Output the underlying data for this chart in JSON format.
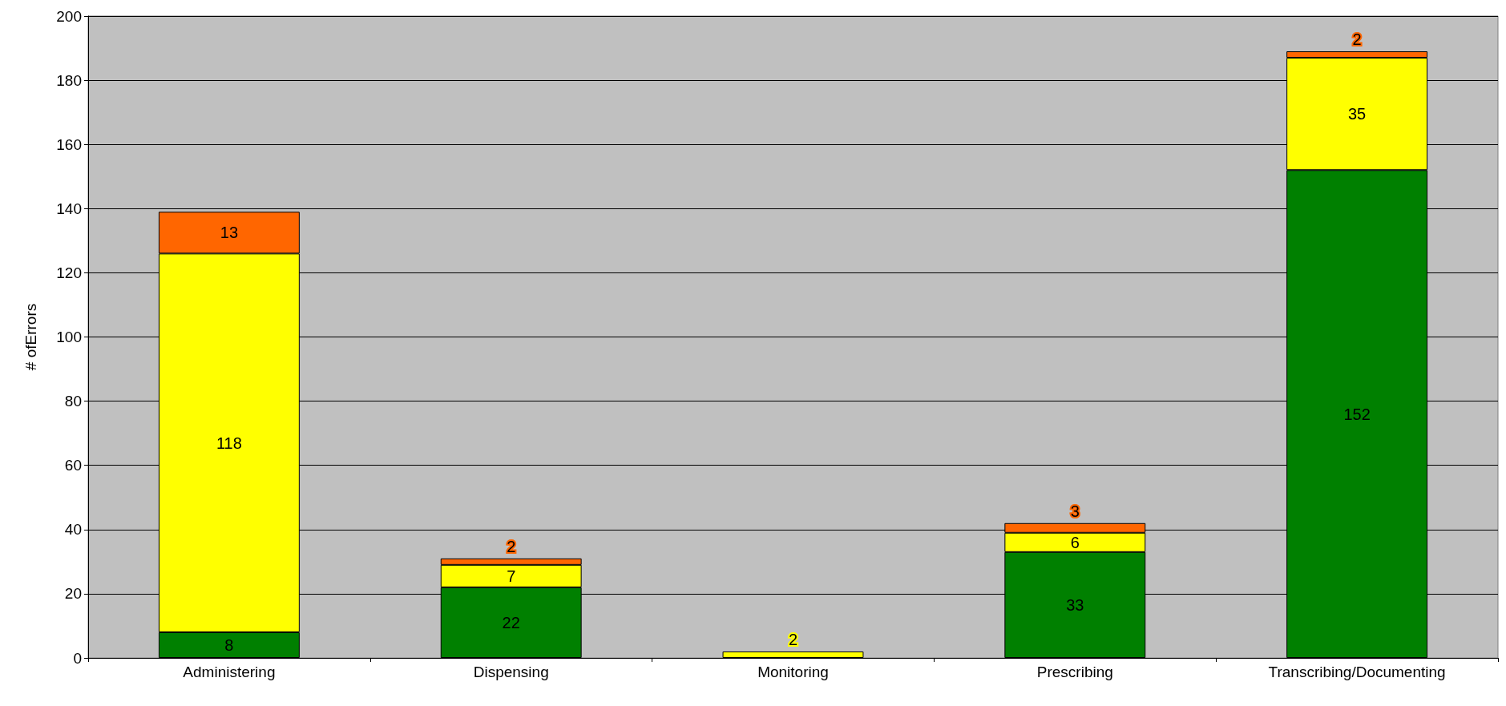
{
  "chart_data": {
    "type": "bar",
    "ylabel": "# ofErrors",
    "categories": [
      "Administering",
      "Dispensing",
      "Monitoring",
      "Prescribing",
      "Transcribing/Documenting"
    ],
    "series": [
      {
        "color": "#008000",
        "values": [
          8,
          22,
          null,
          33,
          152
        ]
      },
      {
        "color": "#ffff00",
        "values": [
          118,
          7,
          2,
          6,
          35
        ]
      },
      {
        "color": "#ff6600",
        "values": [
          13,
          2,
          null,
          3,
          2
        ]
      }
    ],
    "stacked": true,
    "ylim": [
      0,
      200
    ],
    "yticks": [
      0,
      20,
      40,
      60,
      80,
      100,
      120,
      140,
      160,
      180,
      200
    ],
    "grid": "y",
    "data_labels": true
  }
}
